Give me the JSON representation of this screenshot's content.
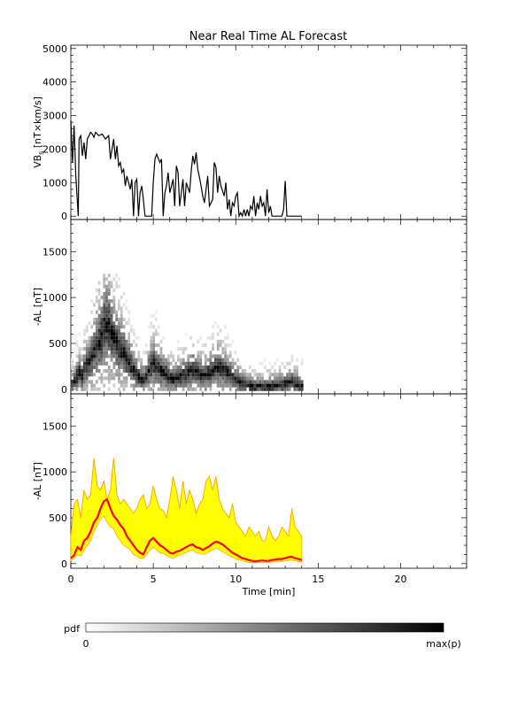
{
  "title": "Near Real Time AL Forecast",
  "colorbar": {
    "label": "pdf",
    "min_label": "0",
    "max_label": "max(p)"
  },
  "chart_data": [
    {
      "type": "line",
      "ylabel_main": "VB",
      "ylabel_sub": "s",
      "ylabel_rest": " [nT×km/s]",
      "xlim": [
        0,
        24
      ],
      "ylim": [
        -100,
        5100
      ],
      "yticks": [
        0,
        1000,
        2000,
        3000,
        4000,
        5000
      ],
      "ytick_labels": [
        "0",
        "1000",
        "2000",
        "3000",
        "4000",
        "5000"
      ],
      "color": "#000000",
      "x": [
        0,
        0.1,
        0.2,
        0.3,
        0.45,
        0.5,
        0.6,
        0.7,
        0.8,
        0.9,
        1.0,
        1.1,
        1.2,
        1.3,
        1.4,
        1.5,
        1.7,
        1.9,
        2.1,
        2.3,
        2.4,
        2.6,
        2.7,
        2.8,
        2.9,
        3.0,
        3.1,
        3.2,
        3.3,
        3.4,
        3.5,
        3.6,
        3.7,
        3.8,
        3.9,
        4.0,
        4.1,
        4.2,
        4.3,
        4.4,
        4.5,
        4.9,
        5.0,
        5.1,
        5.2,
        5.4,
        5.5,
        5.6,
        5.7,
        5.8,
        5.9,
        6.0,
        6.2,
        6.3,
        6.4,
        6.5,
        6.6,
        6.7,
        6.8,
        6.9,
        7.0,
        7.2,
        7.3,
        7.4,
        7.5,
        7.6,
        7.7,
        7.8,
        7.9,
        8.0,
        8.1,
        8.3,
        8.4,
        8.6,
        8.7,
        8.8,
        8.9,
        9.0,
        9.1,
        9.3,
        9.4,
        9.5,
        9.6,
        9.7,
        9.8,
        9.9,
        10.0,
        10.1,
        10.2,
        10.3,
        10.4,
        10.5,
        10.6,
        10.7,
        10.8,
        10.9,
        11.0,
        11.1,
        11.2,
        11.3,
        11.4,
        11.5,
        11.6,
        11.7,
        11.8,
        11.9,
        12.0,
        12.1,
        12.2,
        12.3,
        12.5,
        12.8,
        12.9,
        13.0,
        13.1,
        13.5,
        14.0
      ],
      "y": [
        2850,
        1600,
        2700,
        1200,
        0,
        2300,
        2400,
        1800,
        2200,
        1700,
        2300,
        2400,
        2500,
        2450,
        2350,
        2500,
        2400,
        2450,
        2300,
        2400,
        1700,
        2300,
        1700,
        2100,
        1500,
        1600,
        1300,
        1400,
        900,
        1200,
        1000,
        800,
        1100,
        0,
        1000,
        1100,
        0,
        700,
        900,
        500,
        0,
        0,
        1000,
        1700,
        1850,
        1600,
        1700,
        0,
        700,
        900,
        1300,
        700,
        1100,
        300,
        1500,
        1300,
        300,
        700,
        1100,
        300,
        1000,
        700,
        1350,
        1800,
        1550,
        1900,
        1400,
        1150,
        900,
        600,
        400,
        1200,
        300,
        500,
        1600,
        1450,
        700,
        1200,
        900,
        600,
        1000,
        200,
        500,
        0,
        400,
        300,
        600,
        700,
        0,
        100,
        0,
        200,
        0,
        200,
        0,
        300,
        200,
        600,
        0,
        400,
        200,
        600,
        300,
        400,
        0,
        800,
        100,
        300,
        0,
        0,
        0,
        0,
        200,
        1050,
        0,
        0,
        0
      ]
    },
    {
      "type": "heatmap",
      "ylabel": "-AL [nT]",
      "xlim": [
        0,
        24
      ],
      "ylim": [
        -50,
        1850
      ],
      "yticks": [
        0,
        500,
        1000,
        1500
      ],
      "ytick_labels": [
        "0",
        "500",
        "1000",
        "1500"
      ],
      "cell_width": 0.15,
      "cell_height": 40,
      "colormap": "white-to-black (0 to max(p))",
      "median_x": [
        0,
        0.2,
        0.4,
        0.6,
        0.8,
        1.0,
        1.2,
        1.4,
        1.6,
        1.8,
        2.0,
        2.2,
        2.4,
        2.6,
        2.8,
        3.0,
        3.2,
        3.4,
        3.6,
        3.8,
        4.0,
        4.2,
        4.4,
        4.6,
        4.8,
        5.0,
        5.2,
        5.4,
        5.6,
        5.8,
        6.0,
        6.2,
        6.4,
        6.6,
        6.8,
        7.0,
        7.2,
        7.4,
        7.6,
        7.8,
        8.0,
        8.2,
        8.4,
        8.6,
        8.8,
        9.0,
        9.2,
        9.4,
        9.6,
        9.8,
        10.0,
        10.2,
        10.4,
        10.6,
        10.8,
        11.0,
        11.2,
        11.4,
        11.6,
        11.8,
        12.0,
        12.2,
        12.4,
        12.6,
        12.8,
        13.0,
        13.2,
        13.4,
        13.6,
        13.8,
        14.0
      ],
      "median_y": [
        60,
        90,
        180,
        150,
        250,
        280,
        350,
        450,
        500,
        600,
        680,
        700,
        600,
        520,
        480,
        420,
        380,
        300,
        250,
        200,
        150,
        120,
        100,
        180,
        250,
        280,
        240,
        200,
        180,
        150,
        120,
        110,
        130,
        140,
        160,
        180,
        200,
        210,
        180,
        170,
        150,
        170,
        190,
        220,
        240,
        230,
        210,
        180,
        150,
        120,
        100,
        80,
        60,
        50,
        40,
        30,
        25,
        30,
        35,
        30,
        30,
        40,
        45,
        50,
        50,
        60,
        70,
        75,
        60,
        50,
        40
      ]
    },
    {
      "type": "area",
      "ylabel": "-AL [nT]",
      "xlabel": "Time [min]",
      "xlim": [
        0,
        24
      ],
      "ylim": [
        -50,
        1850
      ],
      "xticks": [
        0,
        5,
        10,
        15,
        20
      ],
      "xtick_labels": [
        "0",
        "5",
        "10",
        "15",
        "20"
      ],
      "yticks": [
        0,
        500,
        1000,
        1500
      ],
      "ytick_labels": [
        "0",
        "500",
        "1000",
        "1500"
      ],
      "band_color": "#ffff00",
      "band_edge_color": "#ffa500",
      "median_color": "#ff0000",
      "x": [
        0,
        0.2,
        0.4,
        0.6,
        0.8,
        1.0,
        1.2,
        1.4,
        1.6,
        1.8,
        2.0,
        2.2,
        2.4,
        2.6,
        2.8,
        3.0,
        3.2,
        3.4,
        3.6,
        3.8,
        4.0,
        4.2,
        4.4,
        4.6,
        4.8,
        5.0,
        5.2,
        5.4,
        5.6,
        5.8,
        6.0,
        6.2,
        6.4,
        6.6,
        6.8,
        7.0,
        7.2,
        7.4,
        7.6,
        7.8,
        8.0,
        8.2,
        8.4,
        8.6,
        8.8,
        9.0,
        9.2,
        9.4,
        9.6,
        9.8,
        10.0,
        10.2,
        10.4,
        10.6,
        10.8,
        11.0,
        11.2,
        11.4,
        11.6,
        11.8,
        12.0,
        12.2,
        12.4,
        12.6,
        12.8,
        13.0,
        13.2,
        13.4,
        13.6,
        13.8,
        14.0
      ],
      "upper": [
        300,
        650,
        700,
        500,
        800,
        700,
        750,
        1150,
        850,
        800,
        900,
        700,
        800,
        1150,
        750,
        650,
        700,
        650,
        600,
        550,
        600,
        700,
        750,
        600,
        650,
        850,
        700,
        600,
        580,
        500,
        700,
        950,
        800,
        600,
        900,
        650,
        800,
        700,
        550,
        650,
        700,
        900,
        950,
        800,
        950,
        700,
        600,
        550,
        500,
        650,
        450,
        400,
        350,
        300,
        400,
        350,
        300,
        350,
        250,
        250,
        400,
        300,
        250,
        300,
        400,
        350,
        300,
        600,
        400,
        350,
        300
      ],
      "lower": [
        30,
        60,
        100,
        80,
        150,
        200,
        250,
        350,
        420,
        480,
        520,
        450,
        400,
        380,
        300,
        250,
        200,
        180,
        150,
        100,
        80,
        60,
        60,
        100,
        150,
        180,
        150,
        120,
        110,
        90,
        70,
        60,
        80,
        90,
        110,
        120,
        140,
        150,
        120,
        110,
        100,
        110,
        130,
        150,
        170,
        150,
        130,
        110,
        90,
        70,
        50,
        40,
        30,
        20,
        15,
        10,
        10,
        15,
        15,
        15,
        15,
        20,
        25,
        25,
        25,
        30,
        35,
        40,
        30,
        25,
        20
      ],
      "median": [
        60,
        90,
        180,
        150,
        250,
        280,
        350,
        450,
        500,
        600,
        680,
        700,
        600,
        520,
        480,
        420,
        380,
        300,
        250,
        200,
        150,
        120,
        100,
        180,
        250,
        280,
        240,
        200,
        180,
        150,
        120,
        110,
        130,
        140,
        160,
        180,
        200,
        210,
        180,
        170,
        150,
        170,
        190,
        220,
        240,
        230,
        210,
        180,
        150,
        120,
        100,
        80,
        60,
        50,
        40,
        30,
        25,
        30,
        35,
        30,
        30,
        40,
        45,
        50,
        50,
        60,
        70,
        75,
        60,
        50,
        40
      ]
    }
  ]
}
